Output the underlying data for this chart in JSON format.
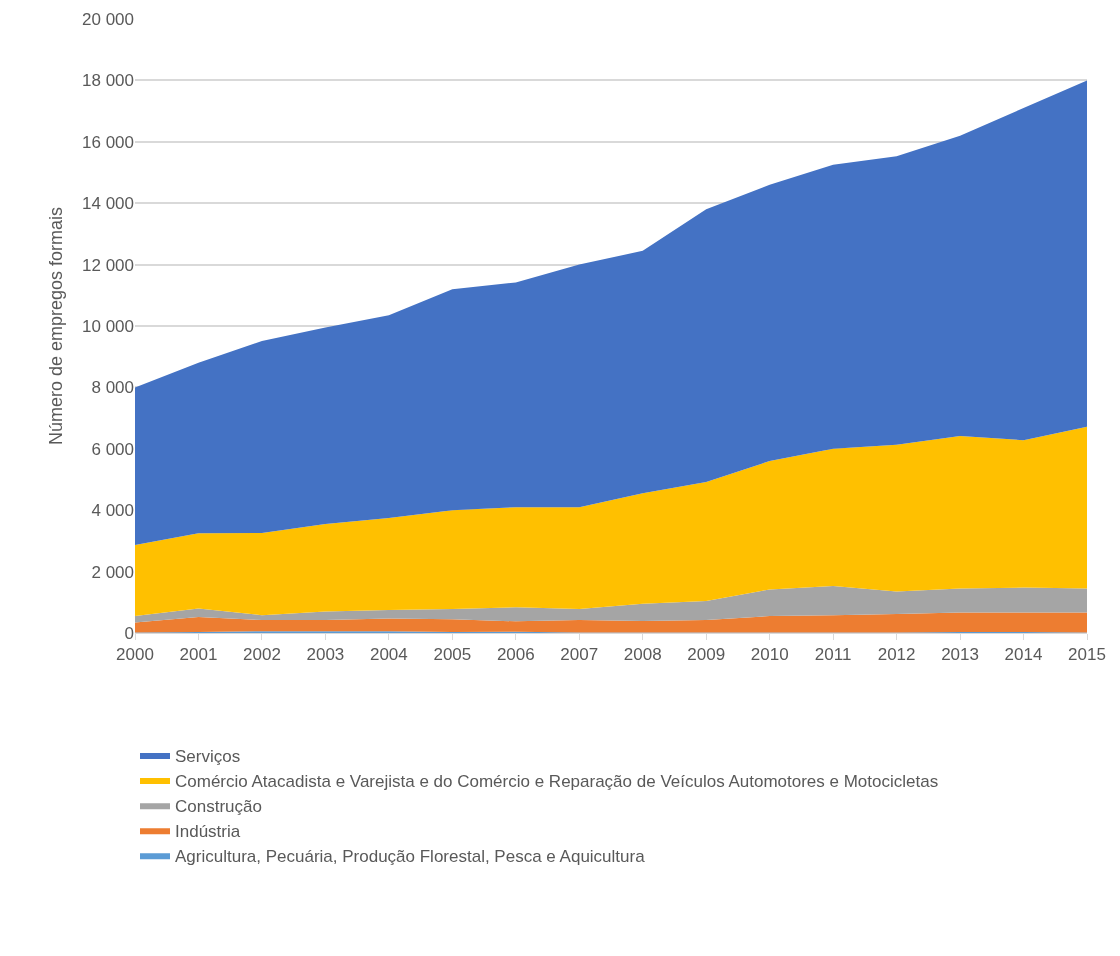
{
  "chart_data": {
    "type": "area",
    "stacked": true,
    "ylabel": "Número de empregos formais",
    "x": [
      2000,
      2001,
      2002,
      2003,
      2004,
      2005,
      2006,
      2007,
      2008,
      2009,
      2010,
      2011,
      2012,
      2013,
      2014,
      2015
    ],
    "xlim": [
      2000,
      2015
    ],
    "xticks": [
      2000,
      2001,
      2002,
      2003,
      2004,
      2005,
      2006,
      2007,
      2008,
      2009,
      2010,
      2011,
      2012,
      2013,
      2014,
      2015
    ],
    "ylim": [
      0,
      20000
    ],
    "yticks": [
      0,
      {
        "value": 2000,
        "label": "2 000"
      },
      {
        "value": 4000,
        "label": "4 000"
      },
      {
        "value": 6000,
        "label": "6 000"
      },
      {
        "value": 8000,
        "label": "8 000"
      },
      {
        "value": 10000,
        "label": "10 000"
      },
      {
        "value": 12000,
        "label": "12 000"
      },
      {
        "value": 14000,
        "label": "14 000"
      },
      {
        "value": 16000,
        "label": "16 000"
      },
      {
        "value": 18000,
        "label": "18 000"
      },
      {
        "value": 20000,
        "label": "20 000"
      }
    ],
    "grid": "y",
    "legend": "bottom",
    "series": [
      {
        "name": "Agricultura, Pecuária, Produção Florestal, Pesca e Aquicultura",
        "color": "#5b9bd5",
        "values": [
          20,
          30,
          60,
          60,
          60,
          30,
          40,
          20,
          20,
          20,
          20,
          20,
          20,
          30,
          30,
          20
        ]
      },
      {
        "name": "Indústria",
        "color": "#ed7d31",
        "values": [
          320,
          490,
          360,
          360,
          410,
          420,
          340,
          400,
          370,
          400,
          530,
          560,
          600,
          640,
          640,
          650
        ]
      },
      {
        "name": "Construção",
        "color": "#a5a5a5",
        "values": [
          210,
          280,
          160,
          280,
          280,
          330,
          460,
          360,
          560,
          620,
          870,
          955,
          730,
          780,
          810,
          780
        ]
      },
      {
        "name": "Comércio Atacadista e Varejista e do Comércio e Reparação de Veículos Automotores e Motocicletas",
        "color": "#ffc000",
        "values": [
          2320,
          2450,
          2680,
          2850,
          3000,
          3220,
          3260,
          3320,
          3600,
          3880,
          4180,
          4470,
          4780,
          4970,
          4800,
          5270
        ]
      },
      {
        "name": "Serviços",
        "color": "#4472c4",
        "values": [
          5130,
          5550,
          6250,
          6400,
          6600,
          7200,
          7320,
          7900,
          7900,
          8880,
          9000,
          9250,
          9400,
          9780,
          10820,
          11280
        ]
      }
    ]
  }
}
